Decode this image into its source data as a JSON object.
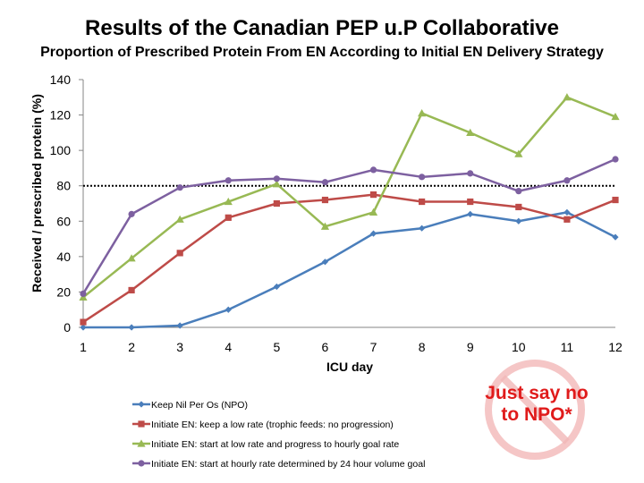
{
  "title": "Results of the Canadian PEP u.P Collaborative",
  "chart_data": {
    "type": "line",
    "subtitle": "Proportion of Prescribed Protein From EN According to Initial EN Delivery Strategy",
    "xlabel": "ICU day",
    "ylabel": "Received / prescribed protein (%)",
    "x": [
      1,
      2,
      3,
      4,
      5,
      6,
      7,
      8,
      9,
      10,
      11,
      12
    ],
    "ylim": [
      0,
      140
    ],
    "yticks": [
      0,
      20,
      40,
      60,
      80,
      100,
      120,
      140
    ],
    "reference_line": {
      "y": 80,
      "style": "dotted"
    },
    "series": [
      {
        "name": "Keep Nil Per Os (NPO)",
        "color": "#4a7ebb",
        "marker": "diamond",
        "values": [
          0,
          0,
          1,
          10,
          23,
          37,
          53,
          56,
          64,
          60,
          65,
          51
        ]
      },
      {
        "name": "Initiate EN: keep a low rate (trophic feeds: no progression)",
        "color": "#be4b48",
        "marker": "square",
        "values": [
          3,
          21,
          42,
          62,
          70,
          72,
          75,
          71,
          71,
          68,
          61,
          72
        ]
      },
      {
        "name": "Initiate EN: start at low rate and progress to hourly goal rate",
        "color": "#98b954",
        "marker": "triangle",
        "values": [
          17,
          39,
          61,
          71,
          81,
          57,
          65,
          121,
          110,
          98,
          130,
          119
        ]
      },
      {
        "name": "Initiate EN: start at hourly rate determined by 24 hour volume goal",
        "color": "#7d60a0",
        "marker": "circle",
        "values": [
          19,
          64,
          79,
          83,
          84,
          82,
          89,
          85,
          87,
          77,
          83,
          95
        ]
      }
    ]
  },
  "callout": {
    "line1": "Just say no",
    "line2": "to NPO*"
  }
}
